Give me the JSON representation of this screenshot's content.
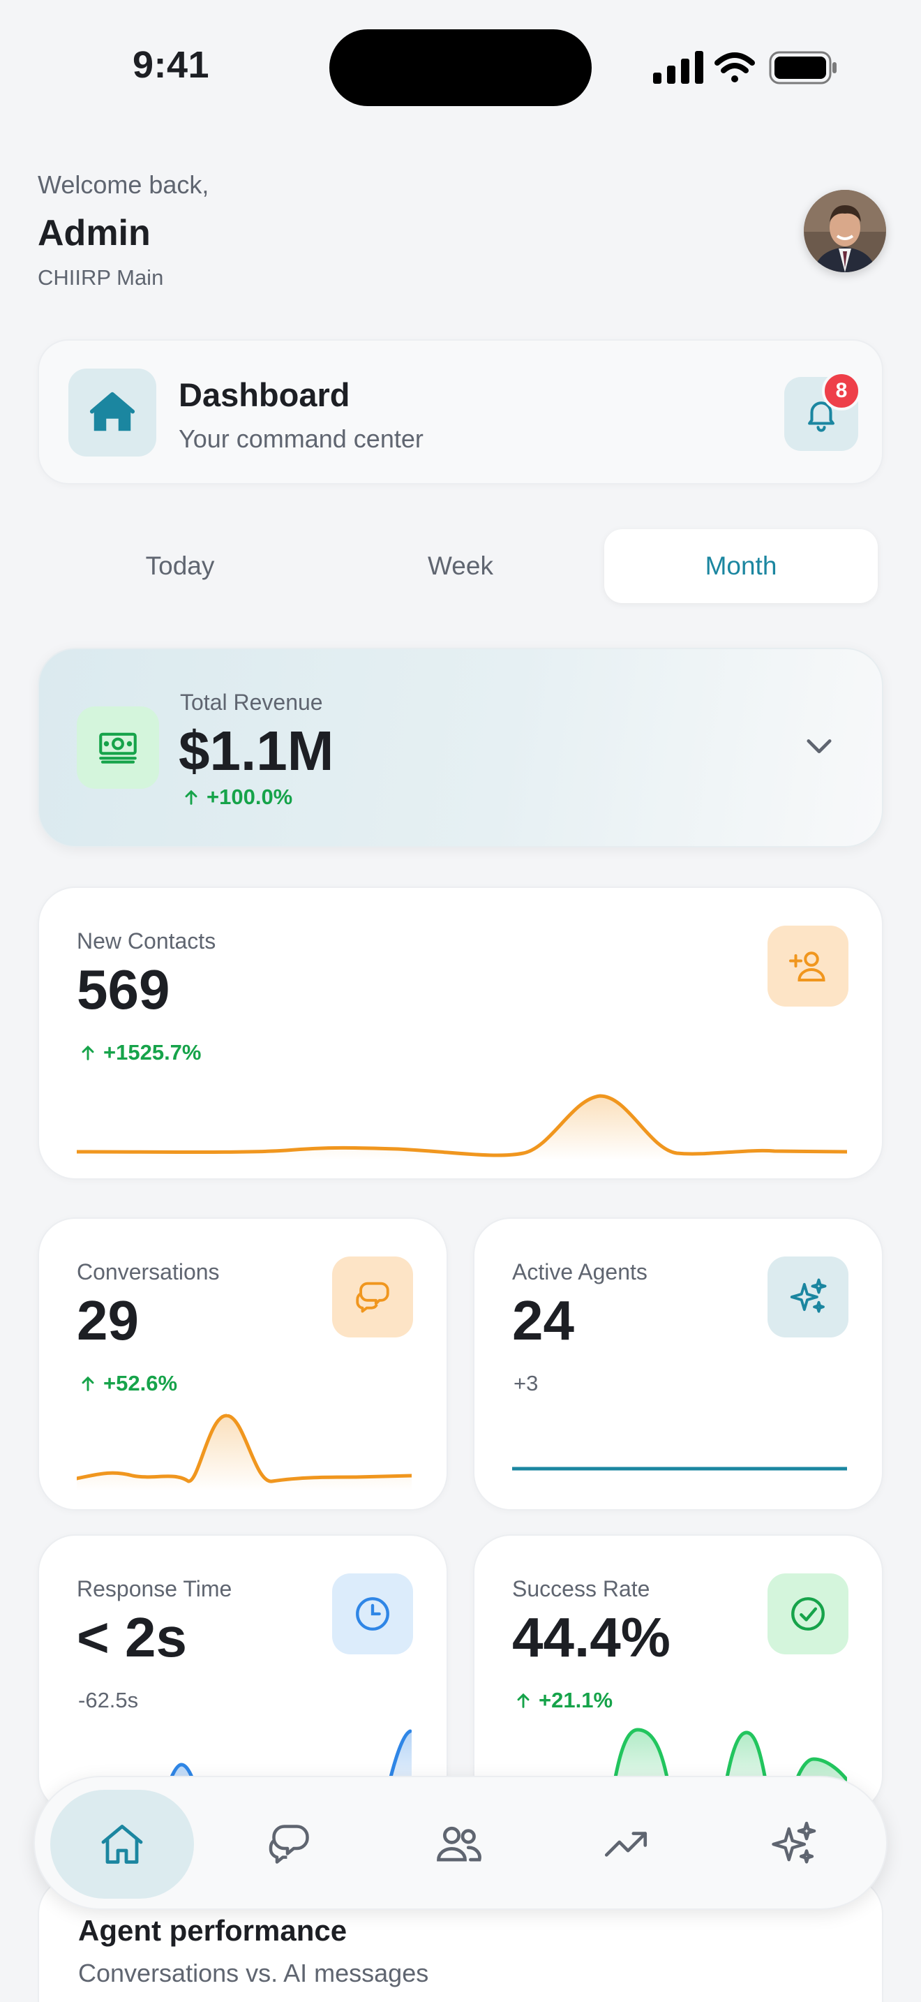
{
  "status": {
    "time": "9:41"
  },
  "greeting": {
    "welcome": "Welcome back,",
    "name": "Admin",
    "branch": "CHIIRP Main"
  },
  "header": {
    "title": "Dashboard",
    "subtitle": "Your command center",
    "notification_count": "8"
  },
  "period_tabs": [
    {
      "label": "Today"
    },
    {
      "label": "Week"
    },
    {
      "label": "Month",
      "active": true
    }
  ],
  "revenue": {
    "label": "Total Revenue",
    "value": "$1.1M",
    "change": "+100.0%"
  },
  "metrics": {
    "new_contacts": {
      "label": "New Contacts",
      "value": "569",
      "change": "+1525.7%"
    },
    "conversations": {
      "label": "Conversations",
      "value": "29",
      "change": "+52.6%"
    },
    "active_agents": {
      "label": "Active Agents",
      "value": "24",
      "change": "+3"
    },
    "response_time": {
      "label": "Response Time",
      "value": "< 2s",
      "change": "-62.5s"
    },
    "success_rate": {
      "label": "Success Rate",
      "value": "44.4%",
      "change": "+21.1%"
    }
  },
  "nav": [
    {
      "icon": "home-icon",
      "active": true
    },
    {
      "icon": "chat-icon"
    },
    {
      "icon": "users-icon"
    },
    {
      "icon": "trending-icon"
    },
    {
      "icon": "sparkles-icon"
    }
  ],
  "agent_performance": {
    "title": "Agent performance",
    "subtitle": "Conversations vs. AI messages"
  },
  "colors": {
    "accent": "#1b86a0",
    "orange": "#f0961e",
    "green": "#16a34a",
    "blue": "#2f86e6",
    "red_badge": "#ee3f49"
  }
}
